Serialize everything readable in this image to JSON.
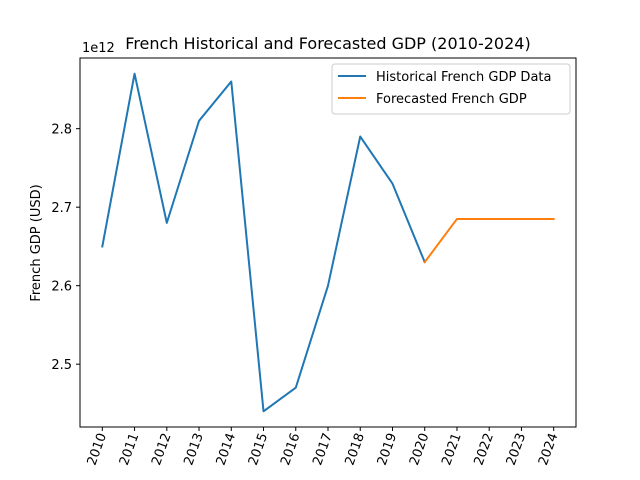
{
  "chart_data": {
    "type": "line",
    "title": "French Historical and Forecasted GDP (2010-2024)",
    "xlabel": "",
    "ylabel": "French GDP (USD)",
    "y_offset_label": "1e12",
    "y_scale_factor": 1000000000000.0,
    "x": [
      "2010",
      "2011",
      "2012",
      "2013",
      "2014",
      "2015",
      "2016",
      "2017",
      "2018",
      "2019",
      "2020",
      "2021",
      "2022",
      "2023",
      "2024"
    ],
    "ylim": [
      2420000000000.0,
      2890000000000.0
    ],
    "yticks": [
      2500000000000.0,
      2600000000000.0,
      2700000000000.0,
      2800000000000.0
    ],
    "ytick_labels": [
      "2.5",
      "2.6",
      "2.7",
      "2.8"
    ],
    "series": [
      {
        "name": "Historical French GDP Data",
        "color": "#1f77b4",
        "x": [
          "2010",
          "2011",
          "2012",
          "2013",
          "2014",
          "2015",
          "2016",
          "2017",
          "2018",
          "2019",
          "2020"
        ],
        "values": [
          2650000000000.0,
          2870000000000.0,
          2680000000000.0,
          2810000000000.0,
          2860000000000.0,
          2440000000000.0,
          2470000000000.0,
          2600000000000.0,
          2790000000000.0,
          2730000000000.0,
          2630000000000.0
        ]
      },
      {
        "name": "Forecasted French GDP",
        "color": "#ff7f0e",
        "x": [
          "2020",
          "2021",
          "2022",
          "2023",
          "2024"
        ],
        "values": [
          2630000000000.0,
          2685000000000.0,
          2685000000000.0,
          2685000000000.0,
          2685000000000.0
        ]
      }
    ],
    "grid": false,
    "legend_position": "top-right"
  }
}
